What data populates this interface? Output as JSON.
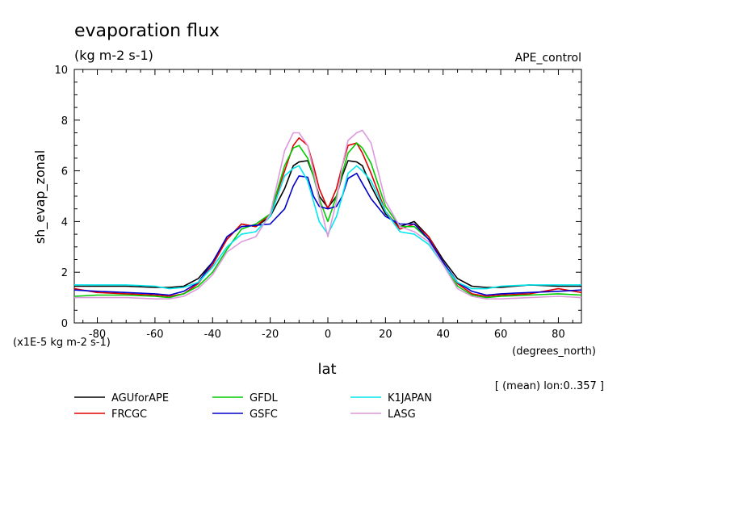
{
  "chart_data": {
    "type": "line",
    "title": "evaporation flux",
    "subtitle": "(kg m-2 s-1)",
    "run_label": "APE_control",
    "xlabel": "lat",
    "x_units": "(degrees_north)",
    "ylabel": "sh_evap_zonal",
    "y_units": "(x1E-5 kg m-2 s-1)",
    "note": "[ (mean) lon:0..357 ]",
    "xlim": [
      -88,
      88
    ],
    "ylim": [
      0,
      10
    ],
    "x_ticks": [
      -80,
      -60,
      -40,
      -20,
      0,
      20,
      40,
      60,
      80
    ],
    "x_tick_labels": [
      "-80",
      "-60",
      "-40",
      "-20",
      "0",
      "20",
      "40",
      "60",
      "80"
    ],
    "y_ticks": [
      0,
      2,
      4,
      6,
      8,
      10
    ],
    "y_tick_labels": [
      "0",
      "2",
      "4",
      "6",
      "8",
      "10"
    ],
    "grid": false,
    "legend_position": "bottom",
    "x": [
      -88,
      -80,
      -70,
      -60,
      -55,
      -50,
      -45,
      -40,
      -35,
      -30,
      -25,
      -20,
      -15,
      -12,
      -10,
      -7,
      -5,
      -3,
      0,
      3,
      5,
      7,
      10,
      12,
      15,
      20,
      25,
      30,
      35,
      40,
      45,
      50,
      55,
      60,
      70,
      80,
      88
    ],
    "series": [
      {
        "name": "AGUforAPE",
        "color": "#000000",
        "values": [
          1.45,
          1.45,
          1.45,
          1.4,
          1.4,
          1.45,
          1.75,
          2.4,
          3.3,
          3.9,
          3.8,
          4.2,
          5.3,
          6.2,
          6.35,
          6.4,
          5.8,
          5.0,
          4.55,
          5.0,
          5.8,
          6.4,
          6.35,
          6.2,
          5.4,
          4.3,
          3.8,
          4.0,
          3.4,
          2.5,
          1.75,
          1.45,
          1.4,
          1.4,
          1.5,
          1.45,
          1.45
        ]
      },
      {
        "name": "FRCGC",
        "color": "#e00000",
        "values": [
          1.35,
          1.2,
          1.15,
          1.1,
          1.05,
          1.15,
          1.55,
          2.3,
          3.3,
          3.9,
          3.8,
          4.3,
          6.0,
          7.0,
          7.3,
          7.0,
          6.2,
          5.3,
          4.5,
          5.3,
          6.2,
          7.0,
          7.1,
          6.7,
          5.9,
          4.4,
          3.7,
          3.9,
          3.4,
          2.4,
          1.55,
          1.15,
          1.05,
          1.1,
          1.15,
          1.35,
          1.2
        ]
      },
      {
        "name": "GFDL",
        "color": "#00cc00",
        "values": [
          1.05,
          1.1,
          1.1,
          1.05,
          1.0,
          1.15,
          1.45,
          2.0,
          2.9,
          3.7,
          3.9,
          4.3,
          6.2,
          6.9,
          7.0,
          6.5,
          5.8,
          4.9,
          4.0,
          5.0,
          5.9,
          6.7,
          7.1,
          6.9,
          6.3,
          4.6,
          3.8,
          3.8,
          3.3,
          2.3,
          1.45,
          1.1,
          1.0,
          1.05,
          1.1,
          1.15,
          1.1
        ]
      },
      {
        "name": "GSFC",
        "color": "#0000cc",
        "values": [
          1.3,
          1.25,
          1.2,
          1.15,
          1.1,
          1.25,
          1.6,
          2.4,
          3.4,
          3.8,
          3.85,
          3.9,
          4.5,
          5.4,
          5.8,
          5.75,
          5.0,
          4.6,
          4.5,
          4.6,
          5.0,
          5.7,
          5.9,
          5.5,
          4.9,
          4.2,
          3.9,
          3.9,
          3.3,
          2.4,
          1.6,
          1.25,
          1.1,
          1.15,
          1.2,
          1.25,
          1.3
        ]
      },
      {
        "name": "K1JAPAN",
        "color": "#00e8ee",
        "values": [
          1.5,
          1.5,
          1.5,
          1.45,
          1.35,
          1.4,
          1.6,
          2.2,
          3.0,
          3.5,
          3.6,
          4.2,
          5.8,
          6.1,
          6.2,
          5.6,
          4.8,
          4.0,
          3.5,
          4.2,
          5.0,
          5.9,
          6.2,
          6.0,
          5.6,
          4.4,
          3.6,
          3.5,
          3.1,
          2.3,
          1.6,
          1.35,
          1.35,
          1.45,
          1.5,
          1.5,
          1.5
        ]
      },
      {
        "name": "LASG",
        "color": "#dd99dd",
        "values": [
          1.0,
          1.0,
          1.0,
          0.95,
          0.95,
          1.05,
          1.35,
          1.9,
          2.8,
          3.2,
          3.4,
          4.3,
          6.8,
          7.5,
          7.5,
          7.0,
          6.0,
          4.8,
          3.4,
          4.8,
          6.2,
          7.2,
          7.5,
          7.6,
          7.1,
          4.8,
          3.8,
          3.6,
          3.2,
          2.3,
          1.35,
          1.05,
          0.95,
          0.95,
          1.0,
          1.05,
          1.0
        ]
      }
    ]
  }
}
